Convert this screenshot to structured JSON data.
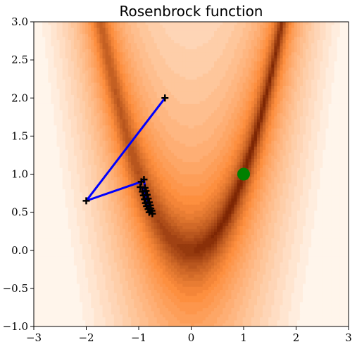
{
  "chart_data": {
    "type": "contour",
    "title": "Rosenbrock function",
    "xlabel": "",
    "ylabel": "",
    "xlim": [
      -3,
      3
    ],
    "ylim": [
      -1,
      3
    ],
    "xticks": [
      {
        "value": -3,
        "label": "−3"
      },
      {
        "value": -2,
        "label": "−2"
      },
      {
        "value": -1,
        "label": "−1"
      },
      {
        "value": 0,
        "label": "0"
      },
      {
        "value": 1,
        "label": "1"
      },
      {
        "value": 2,
        "label": "2"
      },
      {
        "value": 3,
        "label": "3"
      }
    ],
    "yticks": [
      {
        "value": -1.0,
        "label": "−1.0"
      },
      {
        "value": -0.5,
        "label": "−0.5"
      },
      {
        "value": 0.0,
        "label": "0.0"
      },
      {
        "value": 0.5,
        "label": "0.5"
      },
      {
        "value": 1.0,
        "label": "1.0"
      },
      {
        "value": 1.5,
        "label": "1.5"
      },
      {
        "value": 2.0,
        "label": "2.0"
      },
      {
        "value": 2.5,
        "label": "2.5"
      },
      {
        "value": 3.0,
        "label": "3.0"
      }
    ],
    "grid": false,
    "contour": {
      "function": "rosenbrock",
      "colormap": "Oranges",
      "color_low": "#7f2704",
      "color_mid": "#fd8d3c",
      "color_high": "#fff5eb"
    },
    "minimum": {
      "x": 1.0,
      "y": 1.0,
      "color": "#008000"
    },
    "path": {
      "color": "#0000ff",
      "marker_color": "#000000",
      "points": [
        [
          -0.5,
          2.0
        ],
        [
          -2.0,
          0.65
        ],
        [
          -0.95,
          0.9
        ],
        [
          -0.9,
          0.93
        ],
        [
          -0.88,
          0.82
        ],
        [
          -0.97,
          0.83
        ],
        [
          -0.86,
          0.78
        ],
        [
          -0.93,
          0.77
        ],
        [
          -0.84,
          0.73
        ],
        [
          -0.91,
          0.72
        ],
        [
          -0.82,
          0.68
        ],
        [
          -0.89,
          0.67
        ],
        [
          -0.8,
          0.63
        ],
        [
          -0.87,
          0.62
        ],
        [
          -0.78,
          0.59
        ],
        [
          -0.85,
          0.58
        ],
        [
          -0.77,
          0.55
        ],
        [
          -0.82,
          0.54
        ],
        [
          -0.75,
          0.52
        ],
        [
          -0.8,
          0.5
        ],
        [
          -0.74,
          0.48
        ]
      ]
    }
  }
}
